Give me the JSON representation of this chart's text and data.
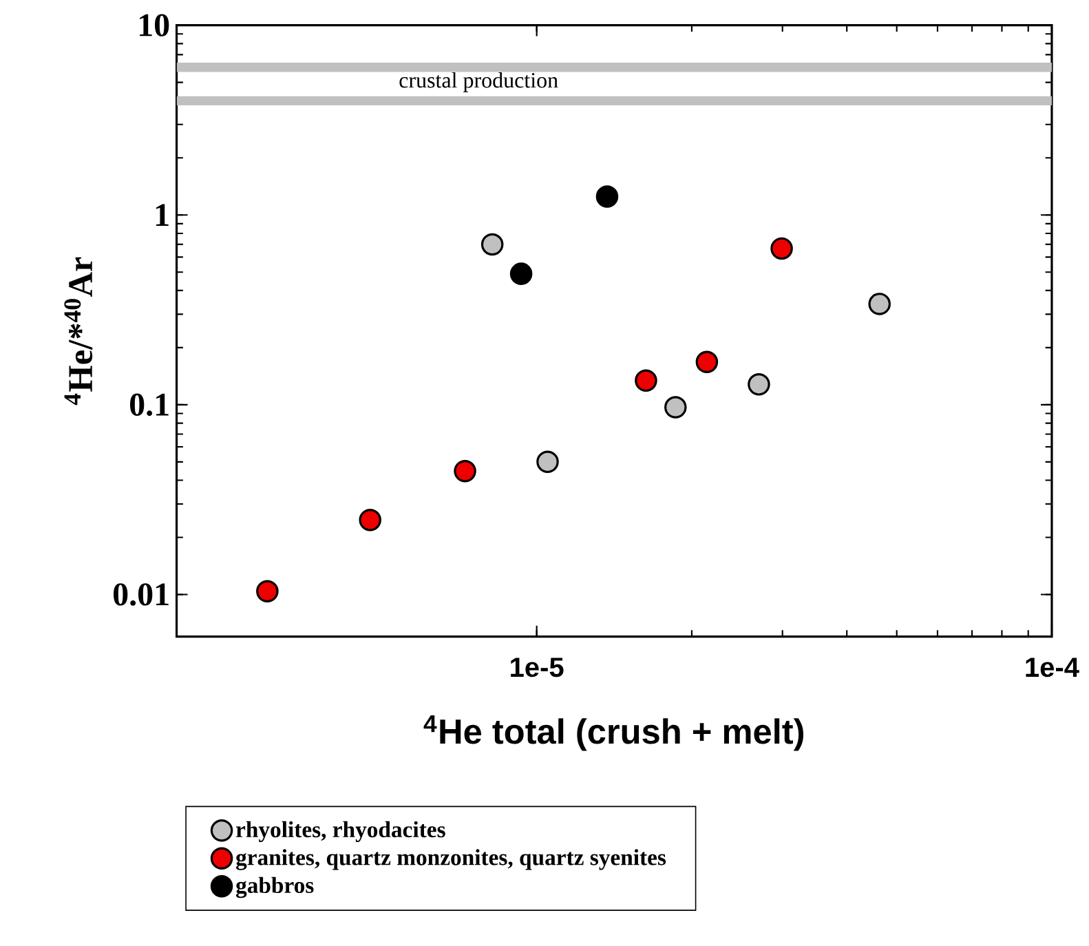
{
  "chart_data": {
    "type": "scatter",
    "xlabel": "$^{4}$He total (crush + melt)",
    "ylabel": "$^{4}$He/*$^{40}$Ar",
    "log": "xy",
    "xlim": [
      2e-06,
      0.0001
    ],
    "ylim": [
      0.006,
      10
    ],
    "xticks": [
      {
        "value": 1e-05,
        "label": "1e-5"
      },
      {
        "value": 0.0001,
        "label": "1e-4"
      }
    ],
    "yticks": [
      0.01,
      0.1,
      1,
      10
    ],
    "marker": "circle",
    "legend": "bottom",
    "grid": false,
    "ref_lines": [
      {
        "axis": "y",
        "value": 6,
        "label": "crustal production",
        "color": "#c0c0c0"
      },
      {
        "axis": "y",
        "value": 4,
        "color": "#c0c0c0"
      }
    ],
    "series": [
      {
        "name": "rhyolites, rhyodacites",
        "color": "#c0c0c0",
        "x": [
          8.2e-06,
          1.05e-05,
          1.86e-05,
          2.7e-05,
          4.63e-05
        ],
        "values": [
          0.7,
          0.05,
          0.097,
          0.128,
          0.34
        ]
      },
      {
        "name": "granites, quartz monzonites, quartz syenites",
        "color": "#ee0000",
        "x": [
          3e-06,
          4.75e-06,
          7.26e-06,
          1.63e-05,
          2.14e-05,
          2.99e-05
        ],
        "values": [
          0.0104,
          0.0247,
          0.0447,
          0.134,
          0.168,
          0.666
        ]
      },
      {
        "name": "gabbros",
        "color": "#000000",
        "x": [
          9.33e-06,
          1.37e-05
        ],
        "values": [
          0.49,
          1.25
        ]
      }
    ]
  }
}
